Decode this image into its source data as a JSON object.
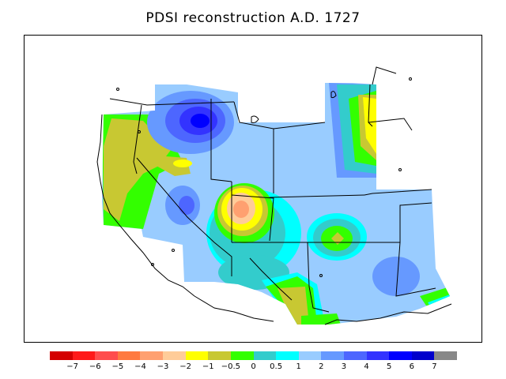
{
  "title": "PDSI reconstruction A.D. 1727",
  "legend": {
    "colors": [
      "#d40000",
      "#ff1a1a",
      "#ff4d4d",
      "#ff7a40",
      "#ffa070",
      "#ffcc99",
      "#ffff00",
      "#c8c832",
      "#33ff00",
      "#33cccc",
      "#00ffff",
      "#99ccff",
      "#6699ff",
      "#4d66ff",
      "#3333ff",
      "#0000ff",
      "#0000cc",
      "#888888"
    ],
    "labels": [
      "−7",
      "−6",
      "−5",
      "−4",
      "−3",
      "−2",
      "−1",
      "−0.5",
      "0",
      "0.5",
      "1",
      "2",
      "3",
      "4",
      "5",
      "6",
      "7"
    ]
  },
  "map": {
    "base_color": "#99ccff",
    "boundary_color": "#000000",
    "anomalies": [
      {
        "name": "northwest-wet-center",
        "value": 5.2
      },
      {
        "name": "great-basin-dry-center",
        "value": -3.4
      },
      {
        "name": "four-corners-wet-center",
        "value": 2.8
      },
      {
        "name": "southwest-wet-center",
        "value": 3.1
      },
      {
        "name": "california-dry-belt",
        "value": -0.8
      },
      {
        "name": "colorado-plains-dry",
        "value": -1.2
      },
      {
        "name": "far-south-dry",
        "value": -0.9
      }
    ]
  }
}
